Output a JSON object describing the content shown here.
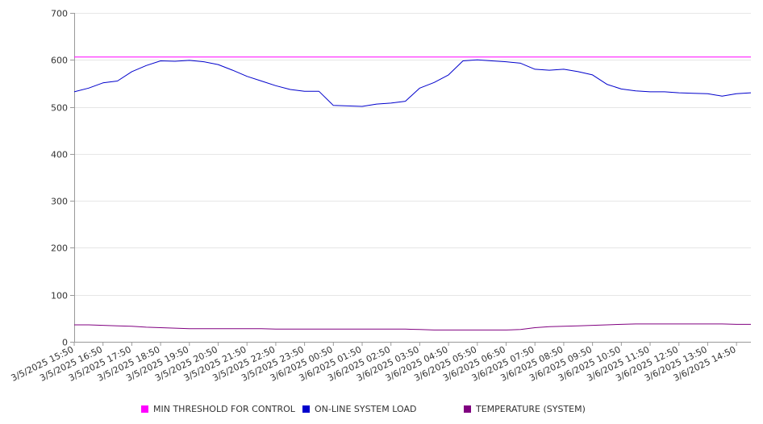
{
  "chart_data": {
    "type": "line",
    "title": "",
    "xlabel": "",
    "ylabel": "",
    "ylim": [
      0,
      700
    ],
    "yticks": [
      0,
      100,
      200,
      300,
      400,
      500,
      600,
      700
    ],
    "grid": true,
    "legend_position": "bottom",
    "x_tick_labels": [
      "3/5/2025 15:50",
      "3/5/2025 16:50",
      "3/5/2025 17:50",
      "3/5/2025 18:50",
      "3/5/2025 19:50",
      "3/5/2025 20:50",
      "3/5/2025 21:50",
      "3/5/2025 22:50",
      "3/5/2025 23:50",
      "3/6/2025 00:50",
      "3/6/2025 01:50",
      "3/6/2025 02:50",
      "3/6/2025 03:50",
      "3/6/2025 04:50",
      "3/6/2025 05:50",
      "3/6/2025 06:50",
      "3/6/2025 07:50",
      "3/6/2025 08:50",
      "3/6/2025 09:50",
      "3/6/2025 10:50",
      "3/6/2025 11:50",
      "3/6/2025 12:50",
      "3/6/2025 13:50",
      "3/6/2025 14:50"
    ],
    "x": [
      "3/5/2025 15:50",
      "3/5/2025 16:20",
      "3/5/2025 16:50",
      "3/5/2025 17:20",
      "3/5/2025 17:50",
      "3/5/2025 18:20",
      "3/5/2025 18:50",
      "3/5/2025 19:20",
      "3/5/2025 19:50",
      "3/5/2025 20:20",
      "3/5/2025 20:50",
      "3/5/2025 21:20",
      "3/5/2025 21:50",
      "3/5/2025 22:20",
      "3/5/2025 22:50",
      "3/5/2025 23:20",
      "3/5/2025 23:50",
      "3/6/2025 00:20",
      "3/6/2025 00:50",
      "3/6/2025 01:20",
      "3/6/2025 01:50",
      "3/6/2025 02:20",
      "3/6/2025 02:50",
      "3/6/2025 03:20",
      "3/6/2025 03:50",
      "3/6/2025 04:20",
      "3/6/2025 04:50",
      "3/6/2025 05:20",
      "3/6/2025 05:50",
      "3/6/2025 06:20",
      "3/6/2025 06:50",
      "3/6/2025 07:20",
      "3/6/2025 07:50",
      "3/6/2025 08:20",
      "3/6/2025 08:50",
      "3/6/2025 09:20",
      "3/6/2025 09:50",
      "3/6/2025 10:20",
      "3/6/2025 10:50",
      "3/6/2025 11:20",
      "3/6/2025 11:50",
      "3/6/2025 12:20",
      "3/6/2025 12:50",
      "3/6/2025 13:20",
      "3/6/2025 13:50",
      "3/6/2025 14:20",
      "3/6/2025 14:50",
      "3/6/2025 15:20"
    ],
    "series": [
      {
        "name": "MIN THRESHOLD FOR CONTROL",
        "color": "#ff00ff",
        "values": [
          606,
          606,
          606,
          606,
          606,
          606,
          606,
          606,
          606,
          606,
          606,
          606,
          606,
          606,
          606,
          606,
          606,
          606,
          606,
          606,
          606,
          606,
          606,
          606,
          606,
          606,
          606,
          606,
          606,
          606,
          606,
          606,
          606,
          606,
          606,
          606,
          606,
          606,
          606,
          606,
          606,
          606,
          606,
          606,
          606,
          606,
          606,
          606
        ]
      },
      {
        "name": "ON-LINE SYSTEM LOAD",
        "color": "#0000cc",
        "values": [
          532,
          540,
          551,
          555,
          575,
          588,
          598,
          597,
          599,
          596,
          590,
          578,
          565,
          555,
          545,
          537,
          533,
          533,
          503,
          502,
          501,
          506,
          508,
          512,
          540,
          552,
          568,
          598,
          600,
          598,
          596,
          593,
          580,
          578,
          580,
          575,
          568,
          548,
          538,
          534,
          532,
          532,
          530,
          529,
          528,
          523,
          528,
          530
        ]
      },
      {
        "name": "TEMPERATURE (SYSTEM)",
        "color": "#800080",
        "values": [
          36,
          36,
          35,
          34,
          33,
          31,
          30,
          29,
          28,
          28,
          28,
          28,
          28,
          28,
          27,
          27,
          27,
          27,
          27,
          27,
          27,
          27,
          27,
          27,
          26,
          25,
          25,
          25,
          25,
          25,
          25,
          26,
          30,
          32,
          33,
          34,
          35,
          36,
          37,
          38,
          38,
          38,
          38,
          38,
          38,
          38,
          37,
          37
        ]
      }
    ]
  }
}
